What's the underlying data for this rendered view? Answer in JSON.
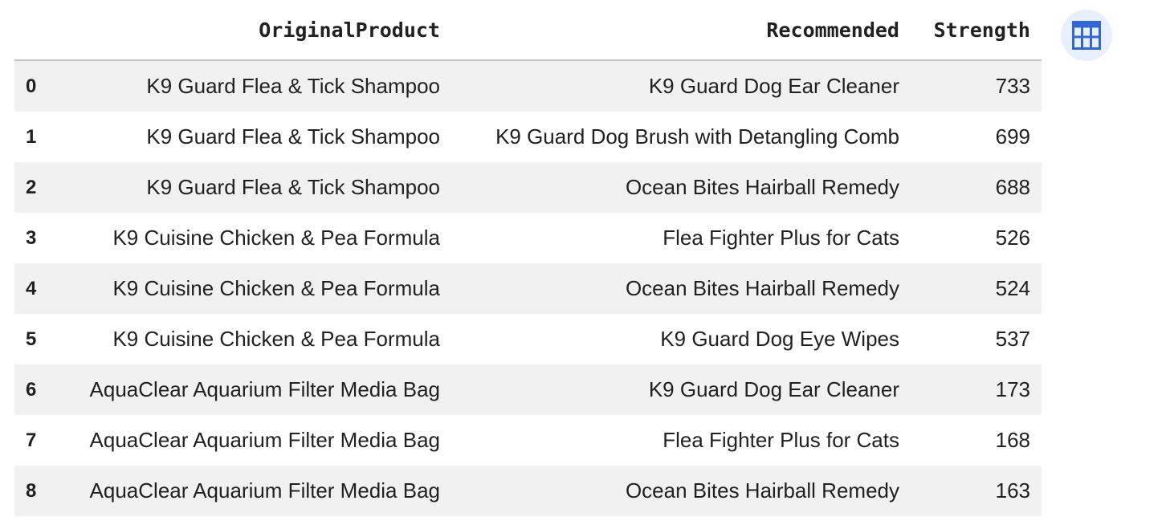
{
  "table": {
    "columns": [
      "",
      "OriginalProduct",
      "Recommended",
      "Strength"
    ],
    "rows": [
      {
        "index": "0",
        "original": "K9 Guard Flea & Tick Shampoo",
        "recommended": "K9 Guard Dog Ear Cleaner",
        "strength": "733"
      },
      {
        "index": "1",
        "original": "K9 Guard Flea & Tick Shampoo",
        "recommended": "K9 Guard Dog Brush with Detangling Comb",
        "strength": "699"
      },
      {
        "index": "2",
        "original": "K9 Guard Flea & Tick Shampoo",
        "recommended": "Ocean Bites Hairball Remedy",
        "strength": "688"
      },
      {
        "index": "3",
        "original": "K9 Cuisine Chicken & Pea Formula",
        "recommended": "Flea Fighter Plus for Cats",
        "strength": "526"
      },
      {
        "index": "4",
        "original": "K9 Cuisine Chicken & Pea Formula",
        "recommended": "Ocean Bites Hairball Remedy",
        "strength": "524"
      },
      {
        "index": "5",
        "original": "K9 Cuisine Chicken & Pea Formula",
        "recommended": "K9 Guard Dog Eye Wipes",
        "strength": "537"
      },
      {
        "index": "6",
        "original": "AquaClear Aquarium Filter Media Bag",
        "recommended": "K9 Guard Dog Ear Cleaner",
        "strength": "173"
      },
      {
        "index": "7",
        "original": "AquaClear Aquarium Filter Media Bag",
        "recommended": "Flea Fighter Plus for Cats",
        "strength": "168"
      },
      {
        "index": "8",
        "original": "AquaClear Aquarium Filter Media Bag",
        "recommended": "Ocean Bites Hairball Remedy",
        "strength": "163"
      }
    ]
  },
  "interactive_table_button": {
    "icon": "table-icon",
    "color": "#3367d6",
    "background": "#e8f0fe"
  }
}
